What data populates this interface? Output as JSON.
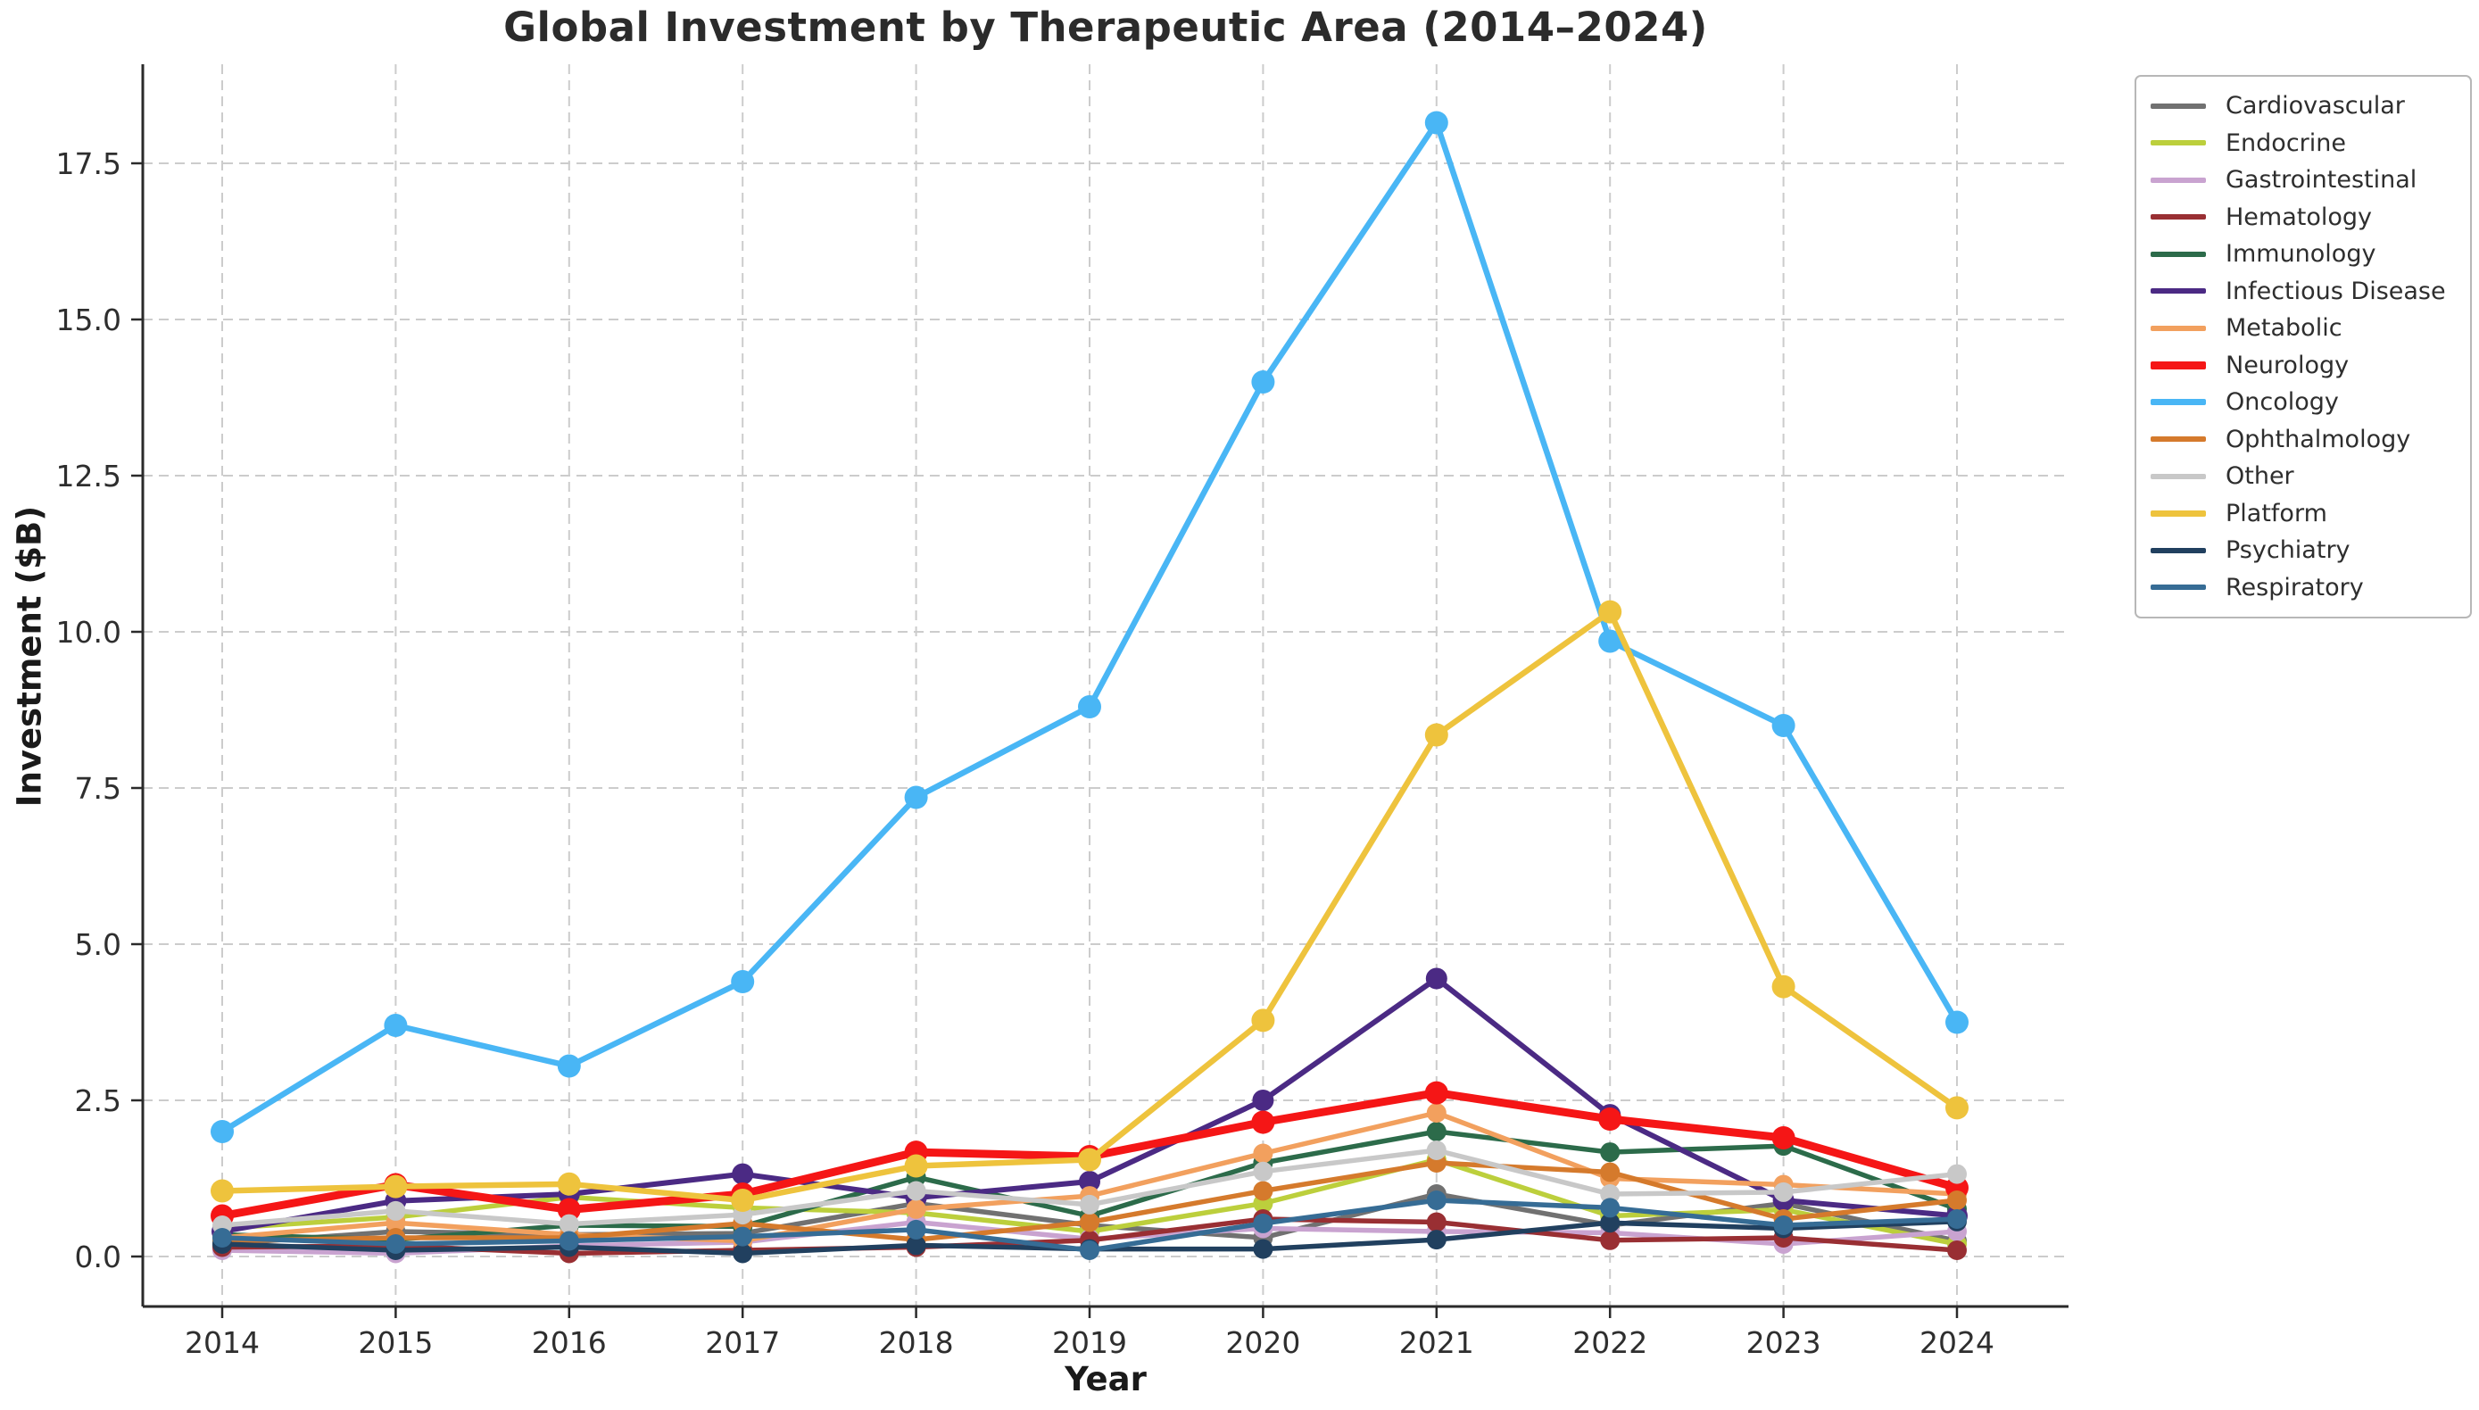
{
  "title": "Global Investment by Therapeutic Area (2014–2024)",
  "chart_data": {
    "type": "line",
    "title": "Global Investment by Therapeutic Area (2014–2024)",
    "xlabel": "Year",
    "ylabel": "Investment ($B)",
    "x": [
      2014,
      2015,
      2016,
      2017,
      2018,
      2019,
      2020,
      2021,
      2022,
      2023,
      2024
    ],
    "yticks": [
      0.0,
      2.5,
      5.0,
      7.5,
      10.0,
      12.5,
      15.0,
      17.5
    ],
    "ylim": [
      -0.8,
      19.1
    ],
    "grid": true,
    "grid_style": "dashed",
    "legend_position": "outside-right",
    "series": [
      {
        "name": "Cardiovascular",
        "color": "#717171",
        "linewidth": 5.5,
        "markersize": 11,
        "values": [
          0.2,
          0.4,
          0.35,
          0.37,
          0.85,
          0.5,
          0.3,
          1.0,
          0.5,
          0.85,
          0.25
        ]
      },
      {
        "name": "Endocrine",
        "color": "#bccf3c",
        "linewidth": 5.5,
        "markersize": 11,
        "values": [
          0.45,
          0.63,
          0.95,
          0.78,
          0.7,
          0.4,
          0.85,
          1.55,
          0.65,
          0.75,
          0.2
        ]
      },
      {
        "name": "Gastrointestinal",
        "color": "#c9a3d0",
        "linewidth": 5.5,
        "markersize": 11,
        "values": [
          0.1,
          0.05,
          0.17,
          0.23,
          0.55,
          0.28,
          0.45,
          0.4,
          0.38,
          0.2,
          0.4
        ]
      },
      {
        "name": "Hematology",
        "color": "#992f33",
        "linewidth": 5.5,
        "markersize": 11,
        "values": [
          0.15,
          0.17,
          0.05,
          0.1,
          0.15,
          0.26,
          0.6,
          0.55,
          0.26,
          0.3,
          0.1
        ]
      },
      {
        "name": "Immunology",
        "color": "#2c6b4a",
        "linewidth": 5.5,
        "markersize": 11,
        "values": [
          0.35,
          0.27,
          0.5,
          0.48,
          1.27,
          0.65,
          1.5,
          2.0,
          1.67,
          1.77,
          0.76
        ]
      },
      {
        "name": "Infectious Disease",
        "color": "#4b2a84",
        "linewidth": 6.0,
        "markersize": 12,
        "values": [
          0.4,
          0.89,
          1.0,
          1.32,
          0.94,
          1.2,
          2.5,
          4.45,
          2.27,
          0.9,
          0.65
        ]
      },
      {
        "name": "Metabolic",
        "color": "#f2a05e",
        "linewidth": 5.5,
        "markersize": 11,
        "values": [
          0.3,
          0.54,
          0.35,
          0.25,
          0.76,
          0.97,
          1.65,
          2.3,
          1.25,
          1.15,
          1.0
        ]
      },
      {
        "name": "Neurology",
        "color": "#f51616",
        "linewidth": 9.0,
        "markersize": 13,
        "values": [
          0.65,
          1.15,
          0.75,
          1.0,
          1.67,
          1.6,
          2.15,
          2.62,
          2.2,
          1.9,
          1.1
        ]
      },
      {
        "name": "Oncology",
        "color": "#49b6f5",
        "linewidth": 6.5,
        "markersize": 13,
        "values": [
          2.0,
          3.7,
          3.05,
          4.4,
          7.35,
          8.8,
          14.0,
          18.15,
          9.85,
          8.5,
          3.75
        ]
      },
      {
        "name": "Ophthalmology",
        "color": "#d57a2c",
        "linewidth": 5.5,
        "markersize": 11,
        "values": [
          0.25,
          0.3,
          0.3,
          0.53,
          0.27,
          0.55,
          1.05,
          1.5,
          1.35,
          0.6,
          0.9
        ]
      },
      {
        "name": "Other",
        "color": "#c8c8c8",
        "linewidth": 5.5,
        "markersize": 11,
        "values": [
          0.5,
          0.73,
          0.52,
          0.67,
          1.05,
          0.83,
          1.36,
          1.7,
          1.0,
          1.03,
          1.32
        ]
      },
      {
        "name": "Platform",
        "color": "#eec33d",
        "linewidth": 6.5,
        "markersize": 13,
        "values": [
          1.05,
          1.12,
          1.16,
          0.9,
          1.45,
          1.55,
          3.78,
          8.35,
          10.32,
          4.32,
          2.38
        ]
      },
      {
        "name": "Psychiatry",
        "color": "#21405f",
        "linewidth": 5.5,
        "markersize": 11,
        "values": [
          0.2,
          0.1,
          0.15,
          0.05,
          0.18,
          0.12,
          0.12,
          0.27,
          0.54,
          0.45,
          0.56
        ]
      },
      {
        "name": "Respiratory",
        "color": "#366c95",
        "linewidth": 5.5,
        "markersize": 11,
        "values": [
          0.3,
          0.2,
          0.25,
          0.32,
          0.43,
          0.1,
          0.53,
          0.9,
          0.78,
          0.5,
          0.6
        ]
      }
    ]
  }
}
